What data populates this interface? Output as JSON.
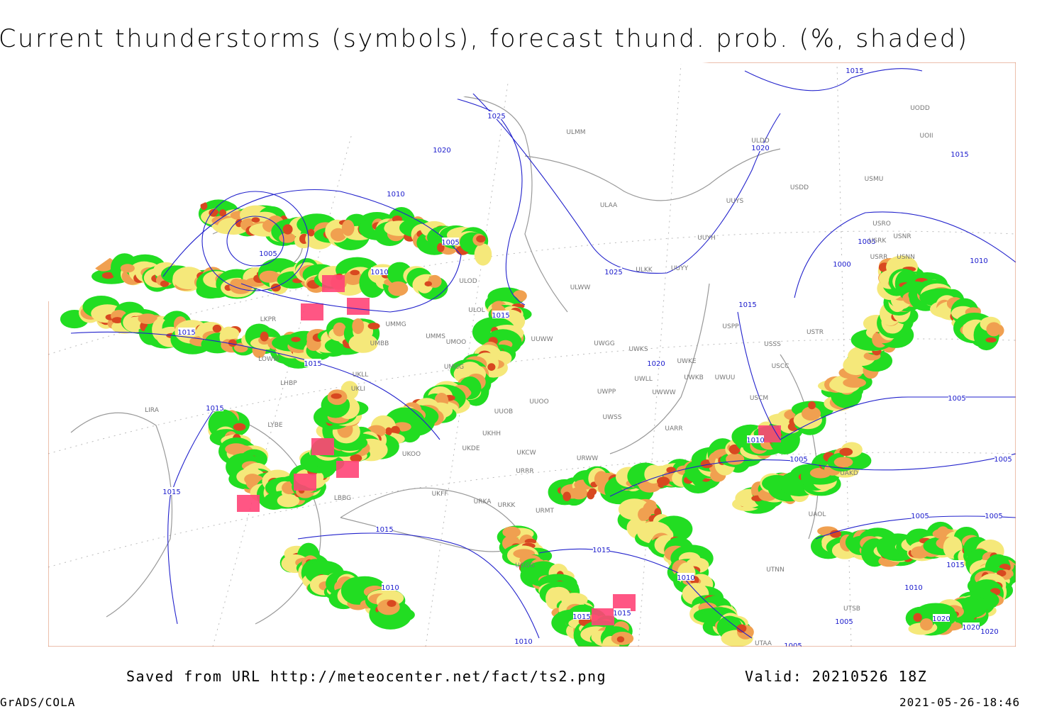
{
  "title": "Current thunderstorms (symbols), forecast thund. prob. (%, shaded)",
  "isobar_labels": [
    "1015",
    "1025",
    "1020",
    "1010",
    "1010",
    "1005",
    "1005",
    "1010",
    "1015",
    "1015",
    "1015",
    "1015",
    "1015",
    "1015",
    "1010",
    "1025",
    "1020",
    "1015",
    "1015",
    "1020",
    "1005",
    "1000",
    "1010",
    "1005",
    "1010",
    "1005",
    "1005",
    "1005",
    "1005",
    "1015",
    "1010",
    "1015",
    "1015",
    "1015",
    "1010",
    "1010",
    "1005",
    "1005",
    "1020",
    "1020",
    "1020"
  ],
  "station_labels": [
    "ULMM",
    "ULDD",
    "UODD",
    "UOII",
    "USMU",
    "USDD",
    "UUYS",
    "ULAA",
    "USRO",
    "USNR",
    "UUYH",
    "USRK",
    "USRR",
    "USNN",
    "ULKK",
    "UUYY",
    "ULWW",
    "ULOD",
    "ULOL",
    "USTR",
    "USPP",
    "UMMG",
    "UMMS",
    "UMOO",
    "UUWW",
    "UWGG",
    "UWKS",
    "USSS",
    "USCC",
    "UMBB",
    "UMGG",
    "UWKE",
    "UWKB",
    "UWUU",
    "UWLL",
    "UWWW",
    "UWPP",
    "USCM",
    "UKLL",
    "UKLI",
    "LHBP",
    "LIRA",
    "UUOO",
    "UUOB",
    "UWSS",
    "LYBE",
    "UKHH",
    "UARR",
    "UKOO",
    "UKDE",
    "UKCW",
    "URWW",
    "URRR",
    "UKFF",
    "URKA",
    "URKK",
    "URMT",
    "LBBG",
    "UAKD",
    "UAOL",
    "UTNN",
    "UGGG",
    "LKPR",
    "LOWW",
    "UTSB",
    "UTAA"
  ],
  "footer": {
    "source": "Saved from URL http://meteocenter.net/fact/ts2.png",
    "valid": "Valid: 20210526 18Z",
    "software": "GrADS/COLA",
    "timestamp": "2021-05-26-18:46"
  }
}
